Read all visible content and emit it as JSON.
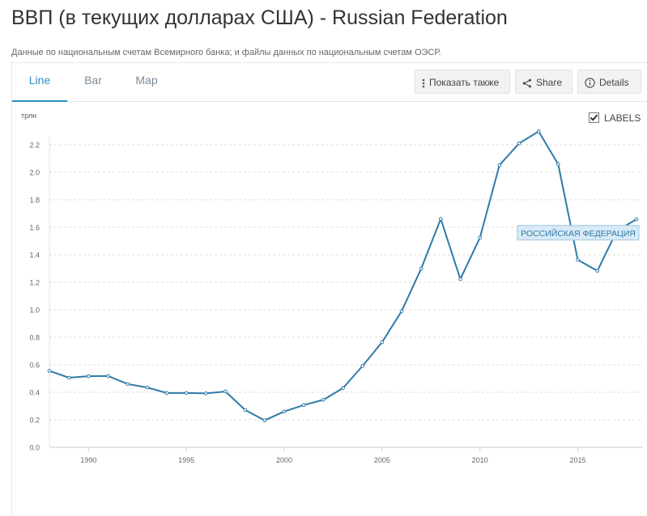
{
  "page": {
    "title": "ВВП (в текущих долларах США) - Russian Federation",
    "subtitle": "Данные по национальным счетам Всемирного банка; и файлы данных по национальным счетам ОЭСР."
  },
  "tabs": [
    {
      "label": "Line",
      "active": true
    },
    {
      "label": "Bar",
      "active": false
    },
    {
      "label": "Map",
      "active": false
    }
  ],
  "toolbar": {
    "show_also_label": "Показать также",
    "share_label": "Share",
    "details_label": "Details"
  },
  "labels_toggle": {
    "label": "LABELS",
    "checked": true
  },
  "colors": {
    "accent": "#2a8fc5",
    "series": "#2e7ba8",
    "grid": "#dcdcdc",
    "label_bg": "#d8eaf6"
  },
  "chart_data": {
    "type": "line",
    "ylabel": "трлн",
    "xlabel": "",
    "ylim": [
      0,
      2.2
    ],
    "xlim": [
      1988,
      2018
    ],
    "yticks": [
      "0.0",
      "0.2",
      "0.4",
      "0.6",
      "0.8",
      "1.0",
      "1.2",
      "1.4",
      "1.6",
      "1.8",
      "2.0",
      "2.2"
    ],
    "xticks": [
      "1990",
      "1995",
      "2000",
      "2005",
      "2010",
      "2015"
    ],
    "grid": true,
    "series": [
      {
        "name": "РОССИЙСКАЯ ФЕДЕРАЦИЯ",
        "x": [
          1988,
          1989,
          1990,
          1991,
          1992,
          1993,
          1994,
          1995,
          1996,
          1997,
          1998,
          1999,
          2000,
          2001,
          2002,
          2003,
          2004,
          2005,
          2006,
          2007,
          2008,
          2009,
          2010,
          2011,
          2012,
          2013,
          2014,
          2015,
          2016,
          2017,
          2018
        ],
        "y": [
          0.555,
          0.506,
          0.517,
          0.518,
          0.46,
          0.435,
          0.395,
          0.395,
          0.392,
          0.405,
          0.271,
          0.196,
          0.26,
          0.307,
          0.345,
          0.43,
          0.591,
          0.764,
          0.99,
          1.3,
          1.661,
          1.223,
          1.525,
          2.052,
          2.21,
          2.297,
          2.059,
          1.363,
          1.283,
          1.575,
          1.658
        ]
      }
    ]
  }
}
